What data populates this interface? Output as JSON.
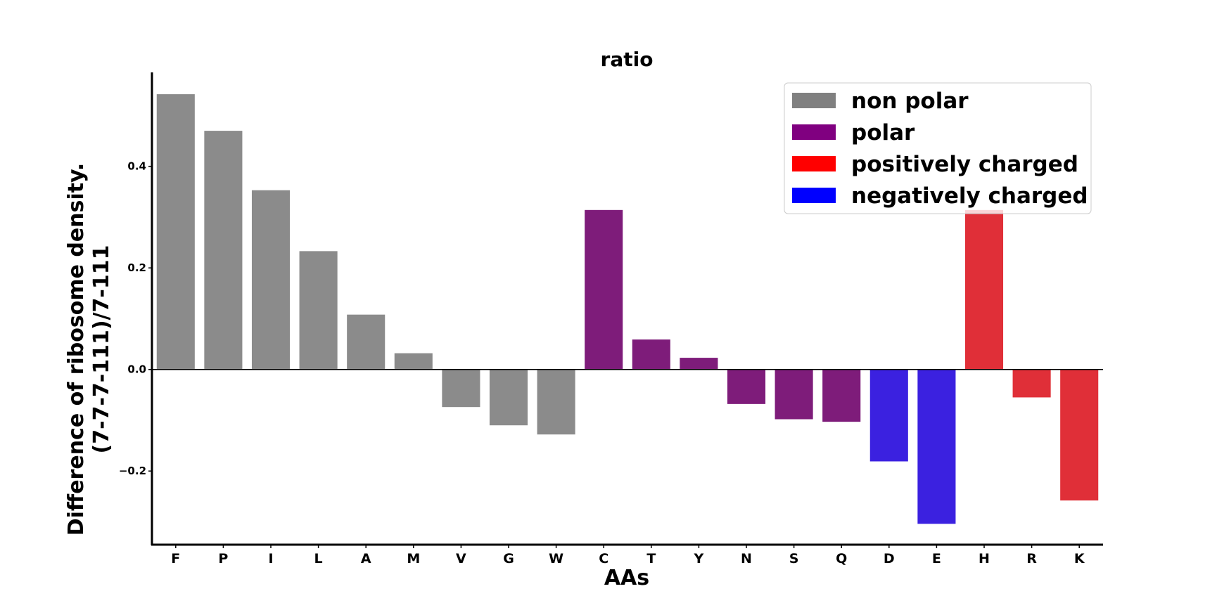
{
  "chart_data": {
    "type": "bar",
    "title": "ratio",
    "xlabel": "AAs",
    "ylabel_lines": [
      "Difference of ribosome density.",
      "(7-7-7-111)/7-111"
    ],
    "ylim": [
      -0.345,
      0.585
    ],
    "yticks": [
      0.4,
      0.2,
      0.0,
      -0.2
    ],
    "ytick_labels": [
      "0.4",
      "0.2",
      "0.0",
      "−0.2"
    ],
    "categories": [
      "F",
      "P",
      "I",
      "L",
      "A",
      "M",
      "V",
      "G",
      "W",
      "C",
      "T",
      "Y",
      "N",
      "S",
      "Q",
      "D",
      "E",
      "H",
      "R",
      "K"
    ],
    "values": [
      0.542,
      0.47,
      0.353,
      0.233,
      0.108,
      0.032,
      -0.074,
      -0.11,
      -0.128,
      0.314,
      0.059,
      0.023,
      -0.068,
      -0.098,
      -0.103,
      -0.181,
      -0.304,
      0.314,
      -0.055,
      -0.258
    ],
    "groups": [
      "non polar",
      "non polar",
      "non polar",
      "non polar",
      "non polar",
      "non polar",
      "non polar",
      "non polar",
      "non polar",
      "polar",
      "polar",
      "polar",
      "polar",
      "polar",
      "polar",
      "negatively charged",
      "negatively charged",
      "positively charged",
      "positively charged",
      "positively charged"
    ],
    "bar_colors": {
      "non polar": "#8b8b8b",
      "polar": "#7e1c7a",
      "positively charged": "#e02f38",
      "negatively charged": "#3b21e0"
    },
    "legend": {
      "placement": "top-right",
      "entries": [
        {
          "label": "non polar",
          "color": "#808080"
        },
        {
          "label": "polar",
          "color": "#800080"
        },
        {
          "label": "positively charged",
          "color": "#ff0000"
        },
        {
          "label": "negatively charged",
          "color": "#0000ff"
        }
      ]
    },
    "grid": false
  }
}
